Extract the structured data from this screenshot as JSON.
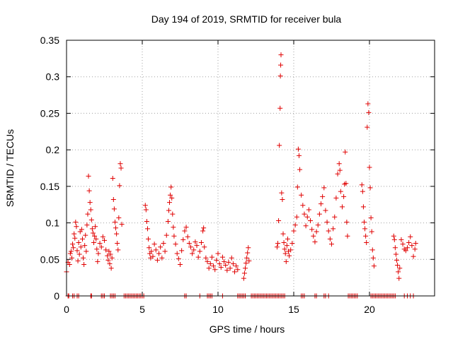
{
  "chart_data": {
    "type": "scatter",
    "title": "Day 194 of 2019, SRMTID for receiver bula",
    "xlabel": "GPS time / hours",
    "ylabel": "SRMTID / TECUs",
    "xlim": [
      0,
      24.3
    ],
    "ylim": [
      0,
      0.35
    ],
    "xticks": [
      0,
      5,
      10,
      15,
      20
    ],
    "xtick_labels": [
      "0",
      "5",
      "10",
      "15",
      "20"
    ],
    "yticks": [
      0,
      0.05,
      0.1,
      0.15,
      0.2,
      0.25,
      0.3,
      0.35
    ],
    "ytick_labels": [
      "0",
      "0.05",
      "0.1",
      "0.15",
      "0.2",
      "0.25",
      "0.3",
      "0.35"
    ],
    "grid": true,
    "marker": "plus",
    "marker_color": "#e00000",
    "series": [
      {
        "name": "SRMTID",
        "points": [
          [
            0.0,
            0.033
          ],
          [
            0.1,
            0.046
          ],
          [
            0.2,
            0.043
          ],
          [
            0.25,
            0.058
          ],
          [
            0.3,
            0.061
          ],
          [
            0.35,
            0.052
          ],
          [
            0.4,
            0.071
          ],
          [
            0.45,
            0.066
          ],
          [
            0.5,
            0.085
          ],
          [
            0.55,
            0.079
          ],
          [
            0.6,
            0.101
          ],
          [
            0.65,
            0.095
          ],
          [
            0.7,
            0.062
          ],
          [
            0.75,
            0.048
          ],
          [
            0.8,
            0.073
          ],
          [
            0.85,
            0.057
          ],
          [
            0.9,
            0.088
          ],
          [
            0.95,
            0.067
          ],
          [
            1.0,
            0.091
          ],
          [
            1.05,
            0.078
          ],
          [
            1.1,
            0.052
          ],
          [
            1.15,
            0.043
          ],
          [
            1.2,
            0.069
          ],
          [
            1.25,
            0.083
          ],
          [
            1.3,
            0.061
          ],
          [
            1.35,
            0.097
          ],
          [
            1.4,
            0.112
          ],
          [
            1.45,
            0.164
          ],
          [
            1.5,
            0.144
          ],
          [
            1.55,
            0.128
          ],
          [
            1.6,
            0.118
          ],
          [
            1.65,
            0.104
          ],
          [
            1.7,
            0.092
          ],
          [
            1.75,
            0.086
          ],
          [
            1.8,
            0.073
          ],
          [
            1.85,
            0.082
          ],
          [
            1.9,
            0.095
          ],
          [
            1.95,
            0.078
          ],
          [
            2.0,
            0.064
          ],
          [
            2.05,
            0.047
          ],
          [
            2.1,
            0.058
          ],
          [
            2.2,
            0.072
          ],
          [
            2.3,
            0.067
          ],
          [
            2.4,
            0.081
          ],
          [
            2.5,
            0.076
          ],
          [
            2.6,
            0.063
          ],
          [
            2.7,
            0.055
          ],
          [
            2.75,
            0.049
          ],
          [
            2.8,
            0.061
          ],
          [
            2.85,
            0.044
          ],
          [
            2.9,
            0.057
          ],
          [
            2.95,
            0.038
          ],
          [
            3.0,
            0.052
          ],
          [
            3.05,
            0.161
          ],
          [
            3.1,
            0.132
          ],
          [
            3.15,
            0.119
          ],
          [
            3.2,
            0.101
          ],
          [
            3.25,
            0.093
          ],
          [
            3.3,
            0.085
          ],
          [
            3.35,
            0.072
          ],
          [
            3.4,
            0.063
          ],
          [
            3.45,
            0.107
          ],
          [
            3.5,
            0.151
          ],
          [
            3.55,
            0.181
          ],
          [
            3.6,
            0.175
          ],
          [
            3.65,
            0.098
          ],
          [
            5.2,
            0.124
          ],
          [
            5.25,
            0.118
          ],
          [
            5.3,
            0.102
          ],
          [
            5.35,
            0.092
          ],
          [
            5.4,
            0.078
          ],
          [
            5.45,
            0.066
          ],
          [
            5.5,
            0.058
          ],
          [
            5.55,
            0.052
          ],
          [
            5.6,
            0.061
          ],
          [
            5.7,
            0.054
          ],
          [
            5.8,
            0.071
          ],
          [
            5.9,
            0.063
          ],
          [
            6.0,
            0.049
          ],
          [
            6.1,
            0.058
          ],
          [
            6.2,
            0.067
          ],
          [
            6.3,
            0.052
          ],
          [
            6.4,
            0.072
          ],
          [
            6.5,
            0.061
          ],
          [
            6.6,
            0.083
          ],
          [
            6.7,
            0.102
          ],
          [
            6.75,
            0.117
          ],
          [
            6.8,
            0.128
          ],
          [
            6.85,
            0.138
          ],
          [
            6.9,
            0.149
          ],
          [
            6.95,
            0.134
          ],
          [
            7.0,
            0.112
          ],
          [
            7.05,
            0.094
          ],
          [
            7.1,
            0.082
          ],
          [
            7.2,
            0.071
          ],
          [
            7.3,
            0.058
          ],
          [
            7.4,
            0.051
          ],
          [
            7.5,
            0.043
          ],
          [
            7.6,
            0.062
          ],
          [
            7.7,
            0.077
          ],
          [
            7.8,
            0.089
          ],
          [
            7.9,
            0.094
          ],
          [
            8.0,
            0.081
          ],
          [
            8.1,
            0.072
          ],
          [
            8.2,
            0.067
          ],
          [
            8.3,
            0.058
          ],
          [
            8.4,
            0.063
          ],
          [
            8.5,
            0.074
          ],
          [
            8.6,
            0.069
          ],
          [
            8.7,
            0.053
          ],
          [
            8.8,
            0.061
          ],
          [
            8.9,
            0.073
          ],
          [
            9.0,
            0.089
          ],
          [
            9.05,
            0.093
          ],
          [
            9.1,
            0.067
          ],
          [
            9.2,
            0.052
          ],
          [
            9.3,
            0.047
          ],
          [
            9.4,
            0.038
          ],
          [
            9.5,
            0.044
          ],
          [
            9.6,
            0.053
          ],
          [
            9.7,
            0.041
          ],
          [
            9.8,
            0.036
          ],
          [
            9.9,
            0.049
          ],
          [
            10.0,
            0.058
          ],
          [
            10.1,
            0.044
          ],
          [
            10.2,
            0.039
          ],
          [
            10.3,
            0.053
          ],
          [
            10.4,
            0.047
          ],
          [
            10.5,
            0.042
          ],
          [
            10.6,
            0.035
          ],
          [
            10.7,
            0.046
          ],
          [
            10.8,
            0.038
          ],
          [
            10.9,
            0.052
          ],
          [
            11.0,
            0.044
          ],
          [
            11.1,
            0.033
          ],
          [
            11.2,
            0.041
          ],
          [
            11.3,
            0.036
          ],
          [
            11.7,
            0.024
          ],
          [
            11.75,
            0.031
          ],
          [
            11.8,
            0.038
          ],
          [
            11.85,
            0.045
          ],
          [
            11.9,
            0.052
          ],
          [
            11.95,
            0.059
          ],
          [
            12.0,
            0.066
          ],
          [
            12.05,
            0.048
          ],
          [
            13.9,
            0.067
          ],
          [
            13.95,
            0.072
          ],
          [
            14.0,
            0.103
          ],
          [
            14.05,
            0.206
          ],
          [
            14.1,
            0.257
          ],
          [
            14.12,
            0.301
          ],
          [
            14.14,
            0.316
          ],
          [
            14.16,
            0.33
          ],
          [
            14.2,
            0.141
          ],
          [
            14.25,
            0.132
          ],
          [
            14.3,
            0.085
          ],
          [
            14.35,
            0.073
          ],
          [
            14.4,
            0.064
          ],
          [
            14.45,
            0.058
          ],
          [
            14.5,
            0.047
          ],
          [
            14.55,
            0.069
          ],
          [
            14.6,
            0.078
          ],
          [
            14.65,
            0.061
          ],
          [
            14.7,
            0.055
          ],
          [
            14.8,
            0.063
          ],
          [
            14.9,
            0.072
          ],
          [
            15.0,
            0.089
          ],
          [
            15.1,
            0.097
          ],
          [
            15.2,
            0.108
          ],
          [
            15.25,
            0.149
          ],
          [
            15.3,
            0.201
          ],
          [
            15.35,
            0.192
          ],
          [
            15.4,
            0.173
          ],
          [
            15.5,
            0.138
          ],
          [
            15.6,
            0.124
          ],
          [
            15.7,
            0.112
          ],
          [
            15.8,
            0.096
          ],
          [
            15.9,
            0.108
          ],
          [
            16.0,
            0.118
          ],
          [
            16.1,
            0.103
          ],
          [
            16.2,
            0.091
          ],
          [
            16.3,
            0.082
          ],
          [
            16.4,
            0.074
          ],
          [
            16.5,
            0.088
          ],
          [
            16.6,
            0.097
          ],
          [
            16.7,
            0.112
          ],
          [
            16.8,
            0.126
          ],
          [
            16.9,
            0.136
          ],
          [
            17.0,
            0.148
          ],
          [
            17.1,
            0.117
          ],
          [
            17.2,
            0.101
          ],
          [
            17.3,
            0.089
          ],
          [
            17.4,
            0.078
          ],
          [
            17.5,
            0.071
          ],
          [
            17.6,
            0.092
          ],
          [
            17.7,
            0.108
          ],
          [
            17.8,
            0.134
          ],
          [
            17.9,
            0.167
          ],
          [
            18.0,
            0.181
          ],
          [
            18.05,
            0.172
          ],
          [
            18.1,
            0.143
          ],
          [
            18.2,
            0.122
          ],
          [
            18.3,
            0.136
          ],
          [
            18.35,
            0.153
          ],
          [
            18.4,
            0.197
          ],
          [
            18.45,
            0.154
          ],
          [
            18.5,
            0.101
          ],
          [
            18.55,
            0.082
          ],
          [
            19.5,
            0.152
          ],
          [
            19.55,
            0.143
          ],
          [
            19.6,
            0.122
          ],
          [
            19.65,
            0.101
          ],
          [
            19.7,
            0.092
          ],
          [
            19.75,
            0.082
          ],
          [
            19.8,
            0.073
          ],
          [
            19.85,
            0.231
          ],
          [
            19.9,
            0.263
          ],
          [
            19.95,
            0.251
          ],
          [
            20.0,
            0.176
          ],
          [
            20.05,
            0.148
          ],
          [
            20.1,
            0.107
          ],
          [
            20.15,
            0.088
          ],
          [
            20.2,
            0.063
          ],
          [
            20.25,
            0.052
          ],
          [
            20.3,
            0.041
          ],
          [
            21.6,
            0.082
          ],
          [
            21.65,
            0.077
          ],
          [
            21.7,
            0.066
          ],
          [
            21.75,
            0.057
          ],
          [
            21.8,
            0.049
          ],
          [
            21.85,
            0.042
          ],
          [
            21.9,
            0.033
          ],
          [
            21.95,
            0.024
          ],
          [
            22.0,
            0.038
          ],
          [
            22.1,
            0.077
          ],
          [
            22.2,
            0.071
          ],
          [
            22.3,
            0.064
          ],
          [
            22.4,
            0.062
          ],
          [
            22.5,
            0.066
          ],
          [
            22.6,
            0.073
          ],
          [
            22.7,
            0.081
          ],
          [
            22.8,
            0.069
          ],
          [
            22.9,
            0.054
          ],
          [
            23.0,
            0.064
          ],
          [
            23.05,
            0.072
          ]
        ],
        "zero_points_x": [
          0.1,
          0.15,
          0.4,
          0.5,
          0.7,
          0.8,
          1.6,
          1.65,
          2.3,
          2.4,
          2.5,
          2.9,
          3.0,
          3.1,
          3.2,
          3.8,
          3.9,
          4.0,
          4.1,
          4.2,
          4.3,
          4.4,
          4.5,
          4.6,
          4.7,
          4.8,
          4.9,
          5.0,
          5.1,
          7.8,
          7.9,
          8.8,
          9.3,
          9.4,
          9.5,
          9.6,
          10.3,
          11.3,
          11.4,
          11.5,
          11.6,
          11.7,
          11.8,
          12.2,
          12.3,
          12.4,
          12.5,
          12.6,
          12.7,
          12.8,
          12.9,
          13.0,
          13.1,
          13.2,
          13.3,
          13.4,
          13.5,
          13.6,
          13.7,
          13.8,
          13.9,
          14.0,
          14.1,
          14.2,
          14.3,
          14.4,
          15.5,
          15.6,
          15.7,
          16.4,
          16.5,
          17.0,
          17.1,
          17.3,
          18.6,
          18.7,
          18.8,
          18.9,
          19.0,
          19.1,
          19.2,
          20.1,
          20.2,
          20.3,
          20.4,
          20.5,
          20.6,
          20.7,
          20.8,
          20.9,
          21.0,
          21.1,
          21.2,
          21.3,
          21.4,
          21.5,
          21.6,
          21.7,
          22.3,
          22.5,
          22.7,
          22.9
        ]
      }
    ]
  }
}
